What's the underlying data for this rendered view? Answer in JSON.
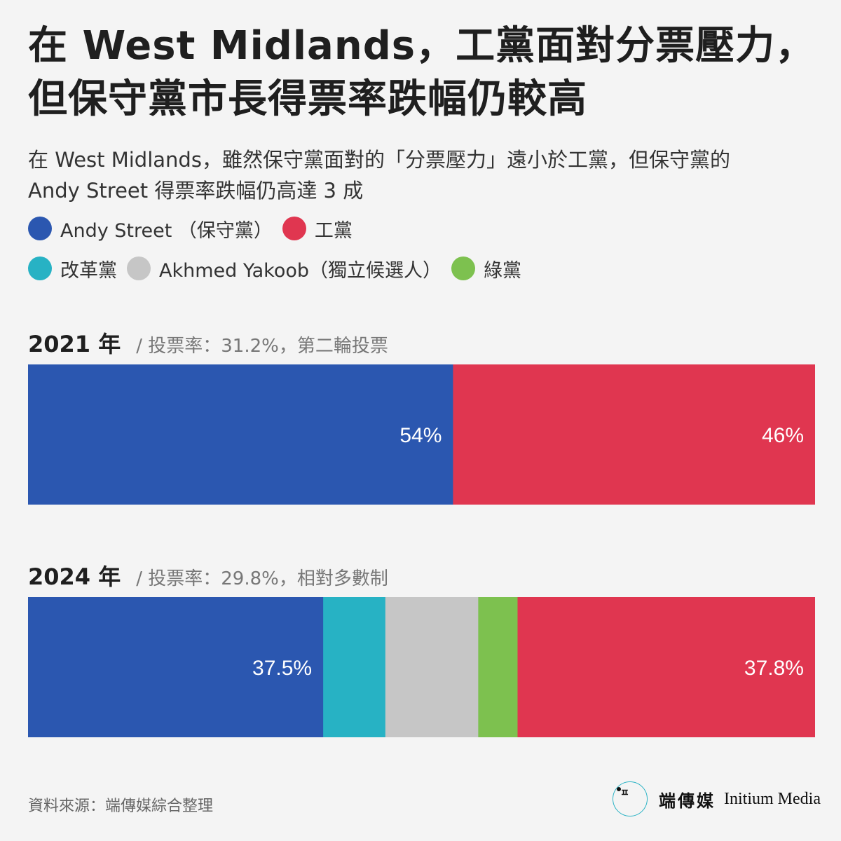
{
  "title": {
    "line1": "在 West Midlands，工黨面對分票壓力，",
    "line2": "但保守黨市長得票率跌幅仍較高"
  },
  "subtitle": {
    "line1": "在  West  Midlands，雖然保守黨面對的「分票壓力」遠小於工黨，但保守黨的",
    "line2": "Andy Street 得票率跌幅仍高達 3 成"
  },
  "legend": [
    {
      "label": "Andy Street （保守黨）",
      "color": "#2b57b0"
    },
    {
      "label": "工黨",
      "color": "#e03650"
    },
    {
      "label": "改革黨",
      "color": "#27b2c4"
    },
    {
      "label": "Akhmed Yakoob（獨立候選人）",
      "color": "#c6c6c6"
    },
    {
      "label": "綠黨",
      "color": "#7dc14f"
    }
  ],
  "chart_data": [
    {
      "type": "bar",
      "orientation": "horizontal-stacked-100",
      "title": "2021 年",
      "note": "/ 投票率：31.2%，第二輪投票",
      "segments": [
        {
          "name": "Andy Street （保守黨）",
          "value": 54,
          "label": "54%",
          "color": "#2b57b0"
        },
        {
          "name": "工黨",
          "value": 46,
          "label": "46%",
          "color": "#e03650"
        }
      ]
    },
    {
      "type": "bar",
      "orientation": "horizontal-stacked-100",
      "title": "2024 年",
      "note": "/ 投票率：29.8%，相對多數制",
      "segments": [
        {
          "name": "Andy Street （保守黨）",
          "value": 37.5,
          "label": "37.5%",
          "color": "#2b57b0"
        },
        {
          "name": "改革黨",
          "value": 7.9,
          "label": "",
          "color": "#27b2c4"
        },
        {
          "name": "Akhmed Yakoob（獨立候選人）",
          "value": 11.8,
          "label": "",
          "color": "#c6c6c6"
        },
        {
          "name": "綠黨",
          "value": 5.0,
          "label": "",
          "color": "#7dc14f"
        },
        {
          "name": "工黨",
          "value": 37.8,
          "label": "37.8%",
          "color": "#e03650"
        }
      ]
    }
  ],
  "footer": {
    "source": "資料來源：端傳媒綜合整理",
    "brand_zh": "端傳媒",
    "brand_en": "Initium Media",
    "logo_glyph": "ㅍ"
  }
}
